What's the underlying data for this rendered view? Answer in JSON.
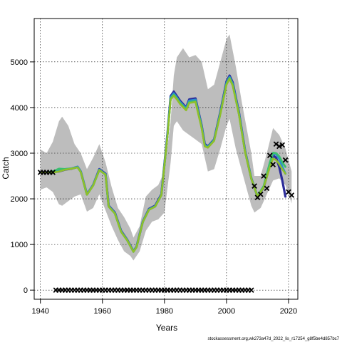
{
  "chart_data": {
    "type": "line",
    "xlabel": "Years",
    "ylabel": "Catch",
    "xlim": [
      1938,
      2023
    ],
    "ylim": [
      -200,
      5950
    ],
    "xticks": [
      1940,
      1960,
      1980,
      2000,
      2020
    ],
    "yticks": [
      0,
      1000,
      2000,
      3000,
      4000,
      5000
    ],
    "grid": true,
    "footer": "stockassessment.org,wk273a47d_2022_lis_r17254_g8f5be4d857bc7",
    "colors": {
      "band": "#bdbdbd",
      "series": [
        "#2d2d9a",
        "#2a8fd0",
        "#3bbf6e",
        "#8fbf2a"
      ],
      "points": "#000000"
    },
    "band": {
      "x": [
        1940,
        1942,
        1944,
        1946,
        1947,
        1949,
        1951,
        1953,
        1955,
        1957,
        1959,
        1961,
        1963,
        1965,
        1967,
        1969,
        1970,
        1972,
        1974,
        1976,
        1978,
        1980,
        1982,
        1983,
        1984,
        1986,
        1988,
        1990,
        1992,
        1994,
        1996,
        1998,
        2000,
        2001,
        2003,
        2005,
        2008,
        2009,
        2011,
        2013,
        2015,
        2017,
        2019,
        2021
      ],
      "upper": [
        3080,
        3000,
        3250,
        3700,
        3800,
        3600,
        3200,
        3000,
        2650,
        2900,
        3200,
        2800,
        2250,
        1800,
        1600,
        1350,
        1150,
        1400,
        2050,
        2200,
        2300,
        2600,
        3700,
        4700,
        5100,
        5300,
        5100,
        5150,
        5000,
        4400,
        4500,
        5000,
        5500,
        5600,
        4900,
        4100,
        3000,
        2500,
        2500,
        3000,
        3550,
        3400,
        3100,
        2600
      ],
      "lower": [
        2200,
        2250,
        2150,
        1880,
        1850,
        1950,
        2050,
        2100,
        1720,
        1800,
        2100,
        1750,
        1400,
        1100,
        850,
        750,
        650,
        850,
        1300,
        1500,
        1550,
        1700,
        2800,
        3600,
        3700,
        3500,
        3400,
        3300,
        3200,
        2600,
        2650,
        3100,
        3600,
        3750,
        3100,
        2600,
        1850,
        1700,
        1800,
        2100,
        2400,
        2450,
        2300,
        1900
      ]
    },
    "series": [
      {
        "x": [
          1940,
          1942,
          1944,
          1946,
          1948,
          1950,
          1952,
          1953,
          1955,
          1957,
          1959,
          1961,
          1962,
          1964,
          1966,
          1968,
          1970,
          1971,
          1973,
          1975,
          1977,
          1979,
          1981,
          1982,
          1983,
          1984,
          1985,
          1987,
          1988,
          1990,
          1992,
          1993,
          1994,
          1996,
          1998,
          2000,
          2001,
          2002,
          2004,
          2006,
          2008,
          2010,
          2012,
          2014,
          2015,
          2016,
          2017,
          2018,
          2019
        ],
        "y": [
          2580,
          2580,
          2580,
          2600,
          2640,
          2660,
          2700,
          2600,
          2100,
          2300,
          2650,
          2550,
          1850,
          1700,
          1300,
          1100,
          850,
          950,
          1500,
          1780,
          1850,
          2100,
          3450,
          4250,
          4350,
          4250,
          4150,
          4000,
          4180,
          4200,
          3600,
          3200,
          3150,
          3300,
          3900,
          4570,
          4700,
          4550,
          3900,
          3050,
          2450,
          2050,
          2250,
          2750,
          2950,
          2900,
          2700,
          2400,
          2050
        ]
      },
      {
        "x": [
          1940,
          1942,
          1944,
          1946,
          1948,
          1950,
          1952,
          1953,
          1955,
          1957,
          1959,
          1961,
          1962,
          1964,
          1966,
          1968,
          1970,
          1971,
          1973,
          1975,
          1977,
          1979,
          1981,
          1982,
          1983,
          1984,
          1985,
          1987,
          1988,
          1990,
          1992,
          1993,
          1994,
          1996,
          1998,
          2000,
          2001,
          2002,
          2004,
          2006,
          2008,
          2010,
          2012,
          2014,
          2015,
          2016,
          2017,
          2018,
          2019
        ],
        "y": [
          2580,
          2580,
          2585,
          2640,
          2650,
          2665,
          2700,
          2600,
          2100,
          2300,
          2640,
          2540,
          1840,
          1690,
          1290,
          1095,
          850,
          950,
          1500,
          1770,
          1840,
          2090,
          3430,
          4220,
          4310,
          4220,
          4120,
          3980,
          4150,
          4170,
          3580,
          3180,
          3140,
          3290,
          3880,
          4540,
          4670,
          4520,
          3880,
          3040,
          2450,
          2050,
          2260,
          2780,
          2990,
          2980,
          2880,
          2700,
          2550
        ]
      },
      {
        "x": [
          1940,
          1942,
          1944,
          1946,
          1948,
          1950,
          1952,
          1953,
          1955,
          1957,
          1959,
          1961,
          1962,
          1964,
          1966,
          1968,
          1970,
          1971,
          1973,
          1975,
          1977,
          1979,
          1981,
          1982,
          1983,
          1984,
          1985,
          1987,
          1988,
          1990,
          1992,
          1993,
          1994,
          1996,
          1998,
          2000,
          2001,
          2002,
          2004,
          2006,
          2008,
          2010,
          2012,
          2014,
          2015,
          2016,
          2017,
          2018,
          2019
        ],
        "y": [
          2580,
          2580,
          2600,
          2660,
          2650,
          2665,
          2690,
          2590,
          2090,
          2290,
          2630,
          2530,
          1830,
          1680,
          1280,
          1090,
          840,
          940,
          1490,
          1760,
          1830,
          2080,
          3410,
          4200,
          4280,
          4200,
          4100,
          3960,
          4120,
          4140,
          3560,
          3160,
          3130,
          3280,
          3860,
          4520,
          4650,
          4500,
          3860,
          3030,
          2450,
          2060,
          2280,
          2800,
          3010,
          3000,
          2930,
          2800,
          2700
        ]
      },
      {
        "x": [
          1940,
          1942,
          1944,
          1946,
          1948,
          1950,
          1952,
          1953,
          1955,
          1957,
          1959,
          1961,
          1962,
          1964,
          1966,
          1968,
          1970,
          1971,
          1973,
          1975,
          1977,
          1979,
          1981,
          1982,
          1983,
          1984,
          1985,
          1987,
          1988,
          1990,
          1992,
          1993,
          1994,
          1996,
          1998,
          2000,
          2001,
          2002,
          2004,
          2006,
          2008,
          2010,
          2012,
          2014,
          2015,
          2016,
          2017,
          2018,
          2019
        ],
        "y": [
          2580,
          2580,
          2570,
          2600,
          2640,
          2660,
          2690,
          2590,
          2090,
          2290,
          2630,
          2530,
          1830,
          1680,
          1280,
          1090,
          840,
          940,
          1490,
          1760,
          1830,
          2080,
          3400,
          4180,
          4260,
          4180,
          4080,
          3940,
          4100,
          4120,
          3540,
          3150,
          3120,
          3270,
          3850,
          4500,
          4630,
          4480,
          3850,
          3020,
          2440,
          2050,
          2250,
          2700,
          2880,
          2850,
          2760,
          2650,
          2550
        ]
      }
    ],
    "points": {
      "x": [
        1940,
        1941,
        1942,
        1943,
        1944,
        1945,
        1946,
        1947,
        1948,
        1949,
        1950,
        1951,
        1952,
        1953,
        1954,
        1955,
        1956,
        1957,
        1958,
        1959,
        1960,
        1961,
        1962,
        1963,
        1964,
        1965,
        1966,
        1967,
        1968,
        1969,
        1970,
        1971,
        1972,
        1973,
        1974,
        1975,
        1976,
        1977,
        1978,
        1979,
        1980,
        1981,
        1982,
        1983,
        1984,
        1985,
        1986,
        1987,
        1988,
        1989,
        1990,
        1991,
        1992,
        1993,
        1994,
        1995,
        1996,
        1997,
        1998,
        1999,
        2000,
        2001,
        2002,
        2003,
        2004,
        2005,
        2006,
        2007,
        2008,
        2009,
        2010,
        2011,
        2012,
        2013,
        2014,
        2015,
        2016,
        2017,
        2018,
        2019,
        2020,
        2021
      ],
      "y": [
        2580,
        2580,
        2580,
        2580,
        2580,
        0,
        0,
        0,
        0,
        0,
        0,
        0,
        0,
        0,
        0,
        0,
        0,
        0,
        0,
        0,
        0,
        0,
        0,
        0,
        0,
        0,
        0,
        0,
        0,
        0,
        0,
        0,
        0,
        0,
        0,
        0,
        0,
        0,
        0,
        0,
        0,
        0,
        0,
        0,
        0,
        0,
        0,
        0,
        0,
        0,
        0,
        0,
        0,
        0,
        0,
        0,
        0,
        0,
        0,
        0,
        0,
        0,
        0,
        0,
        0,
        0,
        0,
        0,
        0,
        2280,
        2030,
        2100,
        2500,
        2230,
        2950,
        2750,
        3200,
        3150,
        3180,
        2850,
        2150,
        2080
      ]
    }
  }
}
